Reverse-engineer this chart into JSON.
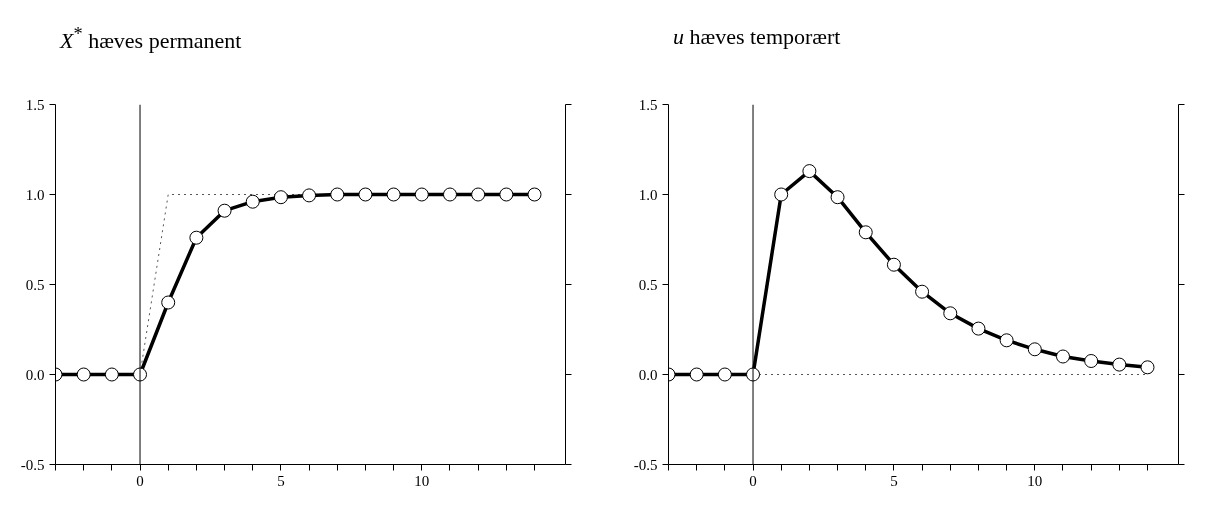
{
  "chart_data": [
    {
      "type": "line",
      "title": "X$^{*}$ hæves permanent",
      "xlim": [
        -3,
        15.1
      ],
      "ylim": [
        -0.5,
        1.5
      ],
      "xticks": [
        {
          "value": -3,
          "label": null
        },
        {
          "value": -2,
          "label": null
        },
        {
          "value": -1,
          "label": null
        },
        0,
        {
          "value": 1,
          "label": null
        },
        {
          "value": 2,
          "label": null
        },
        {
          "value": 3,
          "label": null
        },
        {
          "value": 4,
          "label": null
        },
        5,
        {
          "value": 6,
          "label": null
        },
        {
          "value": 7,
          "label": null
        },
        {
          "value": 8,
          "label": null
        },
        {
          "value": 9,
          "label": null
        },
        10,
        {
          "value": 11,
          "label": null
        },
        {
          "value": 12,
          "label": null
        },
        {
          "value": 13,
          "label": null
        },
        {
          "value": 14,
          "label": null
        }
      ],
      "yticks": [
        {
          "value": -0.5,
          "label": "-0.5"
        },
        {
          "value": 0,
          "label": "0.0"
        },
        {
          "value": 0.5,
          "label": "0.5"
        },
        {
          "value": 1,
          "label": "1.0"
        },
        {
          "value": 1.5,
          "label": "1.5"
        }
      ],
      "grid": false,
      "ref_lines": [
        {
          "axis": "x",
          "value": 0,
          "color": "#000000"
        }
      ],
      "series": [
        {
          "color": "#555555",
          "line_style": "dotted",
          "marker": "none",
          "x": [
            0,
            1,
            14
          ],
          "values": [
            0,
            1,
            1
          ]
        },
        {
          "color": "#000000",
          "line_style": "solid",
          "marker": "circle",
          "x": [
            -3,
            -2,
            -1,
            0,
            1,
            2,
            3,
            4,
            5,
            6,
            7,
            8,
            9,
            10,
            11,
            12,
            13,
            14
          ],
          "values": [
            0,
            0,
            0,
            0,
            0.4,
            0.76,
            0.91,
            0.96,
            0.985,
            0.995,
            1,
            1,
            1,
            1,
            1,
            1,
            1,
            1
          ]
        }
      ]
    },
    {
      "type": "line",
      "title": "u hæves temporært",
      "xlim": [
        -3,
        15.1
      ],
      "ylim": [
        -0.5,
        1.5
      ],
      "xticks": [
        {
          "value": -3,
          "label": null
        },
        {
          "value": -2,
          "label": null
        },
        {
          "value": -1,
          "label": null
        },
        0,
        {
          "value": 1,
          "label": null
        },
        {
          "value": 2,
          "label": null
        },
        {
          "value": 3,
          "label": null
        },
        {
          "value": 4,
          "label": null
        },
        5,
        {
          "value": 6,
          "label": null
        },
        {
          "value": 7,
          "label": null
        },
        {
          "value": 8,
          "label": null
        },
        {
          "value": 9,
          "label": null
        },
        10,
        {
          "value": 11,
          "label": null
        },
        {
          "value": 12,
          "label": null
        },
        {
          "value": 13,
          "label": null
        },
        {
          "value": 14,
          "label": null
        }
      ],
      "yticks": [
        {
          "value": -0.5,
          "label": "-0.5"
        },
        {
          "value": 0,
          "label": "0.0"
        },
        {
          "value": 0.5,
          "label": "0.5"
        },
        {
          "value": 1,
          "label": "1.0"
        },
        {
          "value": 1.5,
          "label": "1.5"
        }
      ],
      "grid": false,
      "ref_lines": [
        {
          "axis": "x",
          "value": 0,
          "color": "#000000"
        }
      ],
      "series": [
        {
          "color": "#555555",
          "line_style": "dotted",
          "marker": "none",
          "x": [
            0,
            14
          ],
          "values": [
            0,
            0
          ]
        },
        {
          "color": "#000000",
          "line_style": "solid",
          "marker": "circle",
          "x": [
            -3,
            -2,
            -1,
            0,
            1,
            2,
            3,
            4,
            5,
            6,
            7,
            8,
            9,
            10,
            11,
            12,
            13,
            14
          ],
          "values": [
            0,
            0,
            0,
            0,
            1,
            1.13,
            0.985,
            0.79,
            0.61,
            0.46,
            0.34,
            0.255,
            0.19,
            0.14,
            0.1,
            0.075,
            0.055,
            0.04
          ]
        }
      ]
    }
  ]
}
